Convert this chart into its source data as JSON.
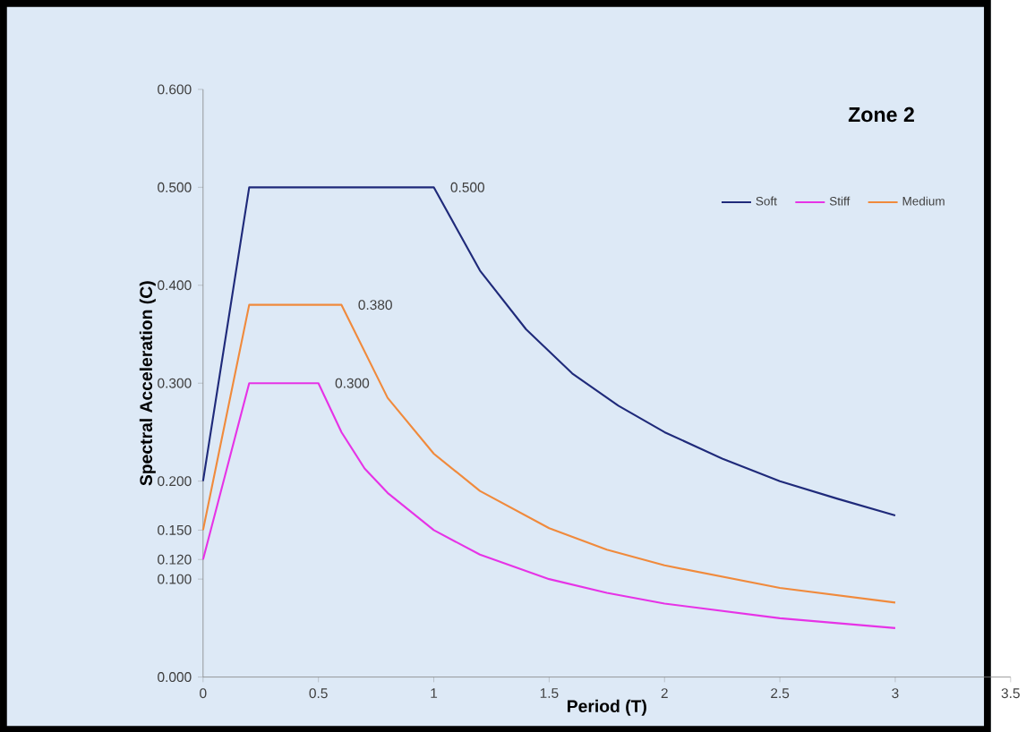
{
  "chart_data": {
    "type": "line",
    "title": "Zone 2",
    "xlabel": "Period (T)",
    "ylabel": "Spectral Acceleration (C)",
    "xlim": [
      0,
      3.5
    ],
    "xticks": [
      0,
      0.5,
      1,
      1.5,
      2,
      2.5,
      3,
      3.5
    ],
    "ylim": [
      0,
      0.6
    ],
    "yticks": [
      {
        "value": 0,
        "label": "0.000"
      },
      {
        "value": 0.1,
        "label": "0.100"
      },
      {
        "value": 0.12,
        "label": "0.120"
      },
      {
        "value": 0.15,
        "label": "0.150"
      },
      {
        "value": 0.2,
        "label": "0.200"
      },
      {
        "value": 0.3,
        "label": "0.300"
      },
      {
        "value": 0.4,
        "label": "0.400"
      },
      {
        "value": 0.5,
        "label": "0.500"
      },
      {
        "value": 0.6,
        "label": "0.600"
      }
    ],
    "legend": "top right",
    "series": [
      {
        "name": "Soft",
        "color": "#1f2a7a",
        "x": [
          0,
          0.2,
          1.0,
          1.2,
          1.4,
          1.6,
          1.8,
          2.0,
          2.25,
          2.5,
          2.75,
          3.0
        ],
        "values": [
          0.2,
          0.5,
          0.5,
          0.415,
          0.355,
          0.31,
          0.277,
          0.25,
          0.223,
          0.2,
          0.182,
          0.165
        ]
      },
      {
        "name": "Stiff",
        "color": "#e633e6",
        "x": [
          0,
          0.2,
          0.5,
          0.6,
          0.7,
          0.8,
          1.0,
          1.2,
          1.5,
          1.75,
          2.0,
          2.5,
          3.0
        ],
        "values": [
          0.12,
          0.3,
          0.3,
          0.25,
          0.213,
          0.188,
          0.15,
          0.125,
          0.1,
          0.086,
          0.075,
          0.06,
          0.05
        ]
      },
      {
        "name": "Medium",
        "color": "#f08a3c",
        "x": [
          0,
          0.2,
          0.6,
          0.8,
          1.0,
          1.2,
          1.5,
          1.75,
          2.0,
          2.5,
          3.0
        ],
        "values": [
          0.15,
          0.38,
          0.38,
          0.285,
          0.228,
          0.19,
          0.152,
          0.13,
          0.114,
          0.091,
          0.076
        ]
      }
    ],
    "annotations": [
      {
        "text": "0.500",
        "x": 1,
        "y": 0.5
      },
      {
        "text": "0.380",
        "x": 0.6,
        "y": 0.38
      },
      {
        "text": "0.300",
        "x": 0.5,
        "y": 0.3
      }
    ]
  }
}
